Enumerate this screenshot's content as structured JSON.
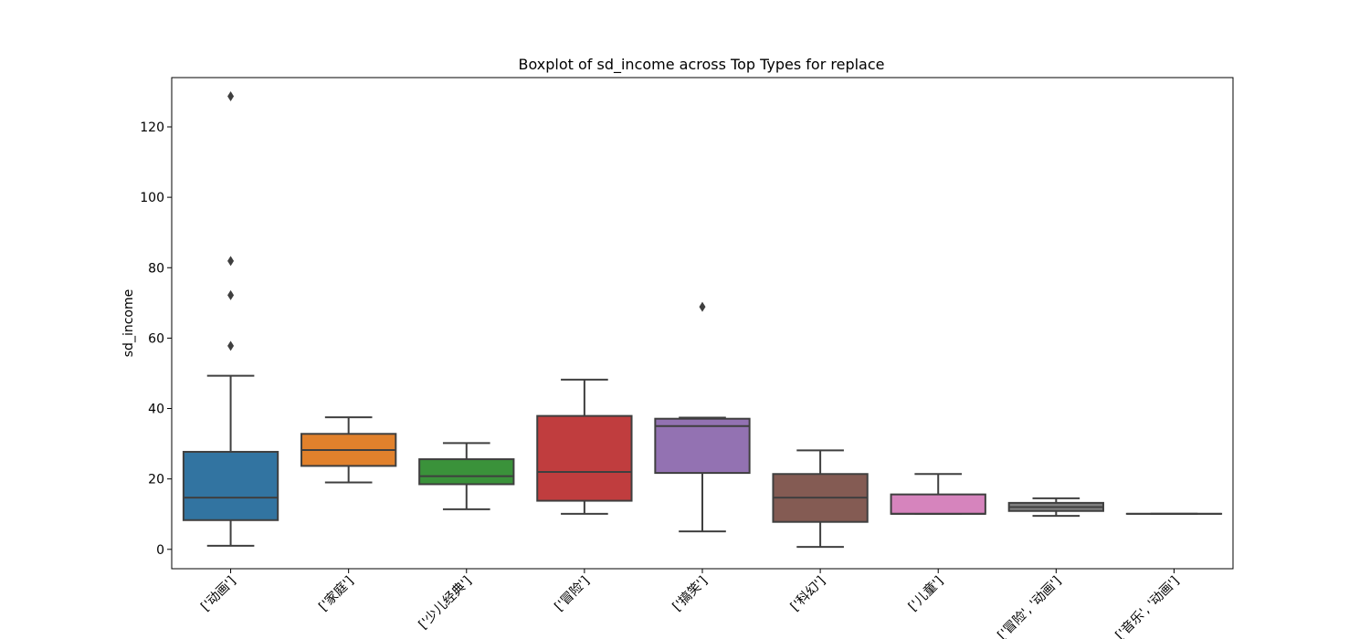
{
  "chart_data": {
    "type": "boxplot",
    "title": "Boxplot of sd_income across Top Types for replace",
    "xlabel": "",
    "ylabel": "sd_income",
    "ylim": [
      -5.5,
      134
    ],
    "yticks": [
      0,
      20,
      40,
      60,
      80,
      100,
      120
    ],
    "grid": false,
    "legend": "none",
    "categories": [
      "['动画']",
      "['家庭']",
      "['少儿经典']",
      "['冒险']",
      "['搞笑']",
      "['科幻']",
      "['儿童']",
      "['冒险', '动画']",
      "['音乐', '动画']"
    ],
    "boxes": [
      {
        "whislo": 1.0,
        "q1": 8.3,
        "med": 14.7,
        "q3": 27.7,
        "whishi": 49.3,
        "fliers": [
          57.8,
          72.2,
          81.9,
          128.7
        ],
        "color": "#3274a1"
      },
      {
        "whislo": 19.0,
        "q1": 23.7,
        "med": 28.2,
        "q3": 32.8,
        "whishi": 37.5,
        "fliers": [],
        "color": "#e1812c"
      },
      {
        "whislo": 11.4,
        "q1": 18.5,
        "med": 20.8,
        "q3": 25.6,
        "whishi": 30.2,
        "fliers": [],
        "color": "#3a923a"
      },
      {
        "whislo": 10.1,
        "q1": 13.8,
        "med": 22.0,
        "q3": 37.9,
        "whishi": 48.2,
        "fliers": [],
        "color": "#c03d3e"
      },
      {
        "whislo": 5.1,
        "q1": 21.7,
        "med": 35.0,
        "q3": 37.1,
        "whishi": 37.4,
        "fliers": [
          68.9
        ],
        "color": "#9372b2"
      },
      {
        "whislo": 0.7,
        "q1": 7.8,
        "med": 14.7,
        "q3": 21.4,
        "whishi": 28.1,
        "fliers": [],
        "color": "#845b53"
      },
      {
        "whislo": 10.1,
        "q1": 10.1,
        "med": 10.1,
        "q3": 15.6,
        "whishi": 21.4,
        "fliers": [],
        "color": "#d684bd"
      },
      {
        "whislo": 9.5,
        "q1": 10.9,
        "med": 12.0,
        "q3": 13.2,
        "whishi": 14.5,
        "fliers": [],
        "color": "#7f7f7f"
      },
      {
        "whislo": 10.1,
        "q1": 10.1,
        "med": 10.1,
        "q3": 10.1,
        "whishi": 10.1,
        "fliers": [],
        "color": "#a9aa35"
      }
    ]
  }
}
